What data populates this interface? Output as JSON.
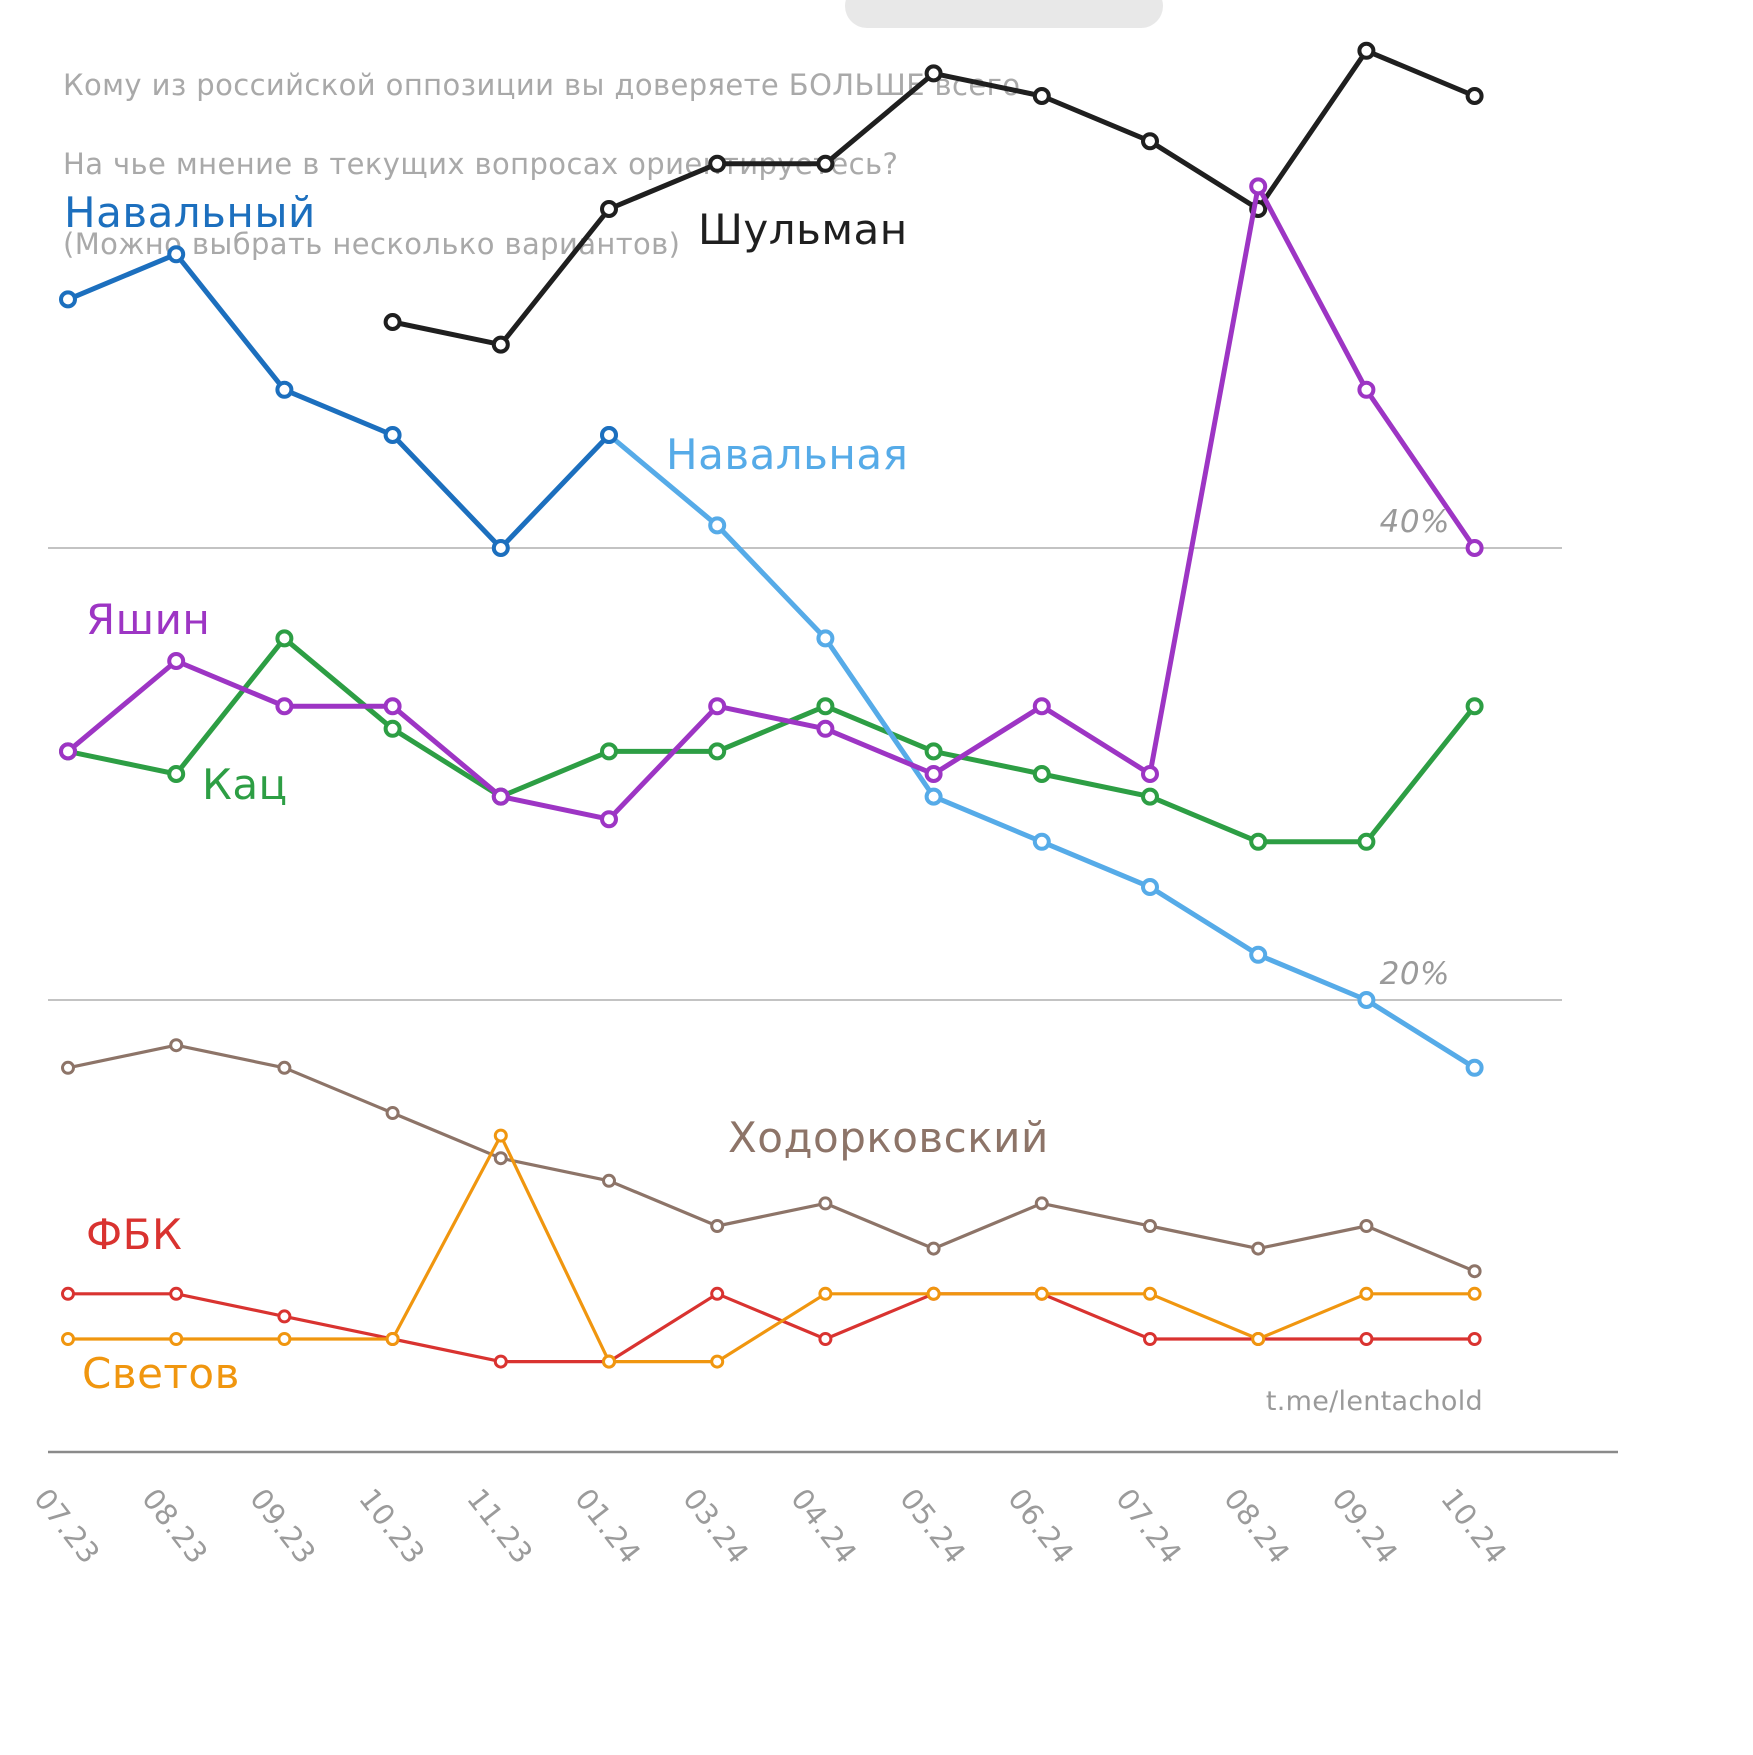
{
  "title": {
    "lines": [
      "Кому из российской оппозиции вы доверяете БОЛЬШЕ всего.",
      "На чье мнение в текущих вопросах ориентируетесь?",
      "(Можно выбрать несколько вариантов)"
    ]
  },
  "watermark": "t.me/lentachold",
  "chart_data": {
    "type": "line",
    "title": "Кому из российской оппозиции вы доверяете БОЛЬШЕ всего. На чье мнение в текущих вопросах ориентируетесь? (Можно выбрать несколько вариантов)",
    "xlabel": "",
    "ylabel": "",
    "x_labels": [
      "07.23",
      "08.23",
      "09.23",
      "10.23",
      "11.23",
      "01.24",
      "03.24",
      "04.24",
      "05.24",
      "06.24",
      "07.24",
      "08.24",
      "09.24",
      "10.24"
    ],
    "ylim": [
      0,
      64
    ],
    "unit": "%",
    "grid": "horizontal-only",
    "legend_position": "inline-labels",
    "gridlines": [
      {
        "value": 40,
        "label": "40%"
      },
      {
        "value": 20,
        "label": "20%"
      }
    ],
    "series": [
      {
        "name": "Ходорковский",
        "color": "#8d7468",
        "lw": 3.2,
        "values": [
          17,
          18,
          17,
          15,
          13,
          12,
          10,
          11,
          9,
          11,
          10,
          9,
          10,
          8
        ]
      },
      {
        "name": "ФБК",
        "color": "#d93330",
        "lw": 3.2,
        "values": [
          7,
          7,
          6,
          5,
          4,
          4,
          7,
          5,
          7,
          7,
          5,
          5,
          5,
          5
        ]
      },
      {
        "name": "Светов",
        "color": "#f0960f",
        "lw": 3.2,
        "values": [
          5,
          5,
          5,
          5,
          14,
          4,
          4,
          7,
          7,
          7,
          7,
          5,
          7,
          7
        ]
      },
      {
        "name": "Кац",
        "color": "#2d9e44",
        "lw": 5,
        "values": [
          31,
          30,
          36,
          32,
          29,
          31,
          31,
          33,
          31,
          30,
          29,
          27,
          27,
          33
        ]
      },
      {
        "name": "Навальная",
        "color": "#56abe8",
        "lw": 5,
        "values": [
          null,
          null,
          null,
          null,
          null,
          45,
          41,
          36,
          29,
          27,
          25,
          22,
          20,
          17
        ]
      },
      {
        "name": "Навальный",
        "color": "#1c6fbe",
        "lw": 5,
        "values": [
          51,
          53,
          47,
          45,
          40,
          45,
          null,
          null,
          null,
          null,
          null,
          null,
          null,
          null
        ]
      },
      {
        "name": "Шульман",
        "color": "#1f1f1f",
        "lw": 5,
        "values": [
          null,
          null,
          null,
          50,
          49,
          55,
          57,
          57,
          61,
          60,
          58,
          55,
          62,
          60
        ]
      },
      {
        "name": "Яшин",
        "color": "#9d35c4",
        "lw": 5,
        "values": [
          31,
          35,
          33,
          33,
          29,
          28,
          33,
          32,
          30,
          33,
          30,
          56,
          47,
          40
        ]
      }
    ]
  }
}
